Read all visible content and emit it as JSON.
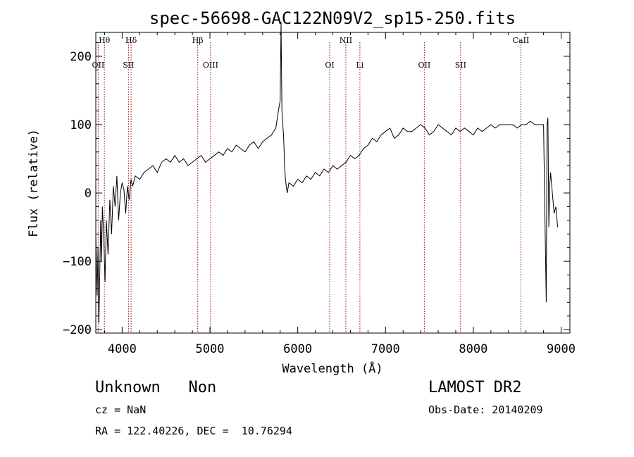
{
  "chart_data": {
    "type": "line",
    "title": "spec-56698-GAC122N09V2_sp15-250.fits",
    "xlabel": "Wavelength (Å)",
    "ylabel": "Flux (relative)",
    "xlim": [
      3700,
      9100
    ],
    "ylim": [
      -205,
      235
    ],
    "x_ticks": [
      "4000",
      "5000",
      "6000",
      "7000",
      "8000",
      "9000"
    ],
    "y_ticks": [
      "-200",
      "-100",
      "0",
      "100",
      "200"
    ],
    "grid": false,
    "series": [
      {
        "x": [
          3700,
          3715,
          3725,
          3735,
          3745,
          3755,
          3765,
          3775,
          3790,
          3805,
          3820,
          3840,
          3860,
          3880,
          3900,
          3920,
          3940,
          3960,
          3980,
          4000,
          4020,
          4040,
          4060,
          4080,
          4100,
          4120,
          4150,
          4200,
          4250,
          4300,
          4350,
          4400,
          4450,
          4500,
          4550,
          4600,
          4650,
          4700,
          4750,
          4800,
          4850,
          4900,
          4950,
          5000,
          5050,
          5100,
          5150,
          5200,
          5250,
          5300,
          5350,
          5400,
          5450,
          5500,
          5550,
          5600,
          5650,
          5700,
          5750,
          5780,
          5800,
          5810,
          5820,
          5830,
          5840,
          5850,
          5860,
          5870,
          5880,
          5900,
          5950,
          6000,
          6050,
          6100,
          6150,
          6200,
          6250,
          6300,
          6350,
          6400,
          6450,
          6500,
          6550,
          6600,
          6650,
          6700,
          6750,
          6800,
          6850,
          6900,
          6950,
          7000,
          7050,
          7100,
          7150,
          7200,
          7250,
          7300,
          7350,
          7400,
          7450,
          7500,
          7550,
          7600,
          7650,
          7700,
          7750,
          7800,
          7850,
          7900,
          7950,
          8000,
          8050,
          8100,
          8150,
          8200,
          8250,
          8300,
          8350,
          8400,
          8450,
          8500,
          8550,
          8600,
          8650,
          8700,
          8750,
          8800,
          8830,
          8840,
          8850,
          8860,
          8870,
          8880,
          8900,
          8920,
          8940,
          8960
        ],
        "values": [
          -60,
          -150,
          -80,
          -190,
          -120,
          -40,
          -100,
          -20,
          -60,
          -130,
          -40,
          -90,
          -10,
          -60,
          10,
          -20,
          25,
          -40,
          0,
          15,
          5,
          -30,
          10,
          -10,
          20,
          10,
          25,
          20,
          30,
          35,
          40,
          30,
          45,
          50,
          45,
          55,
          45,
          50,
          40,
          45,
          50,
          55,
          45,
          50,
          55,
          60,
          55,
          65,
          60,
          70,
          65,
          60,
          70,
          75,
          65,
          75,
          80,
          85,
          95,
          120,
          135,
          250,
          120,
          100,
          80,
          40,
          20,
          10,
          0,
          15,
          10,
          20,
          15,
          25,
          20,
          30,
          25,
          35,
          30,
          40,
          35,
          40,
          45,
          55,
          50,
          55,
          65,
          70,
          80,
          75,
          85,
          90,
          95,
          80,
          85,
          95,
          90,
          90,
          95,
          100,
          95,
          85,
          90,
          100,
          95,
          90,
          85,
          95,
          90,
          95,
          90,
          85,
          95,
          90,
          95,
          100,
          95,
          100,
          100,
          100,
          100,
          95,
          100,
          100,
          105,
          100,
          100,
          100,
          -160,
          100,
          110,
          -50,
          10,
          30,
          0,
          -30,
          -20,
          -50
        ]
      }
    ],
    "lines": [
      {
        "name": "Hθ",
        "x": 3798,
        "row": 1
      },
      {
        "name": "OII",
        "x": 3727,
        "row": 2
      },
      {
        "name": "Hδ",
        "x": 4102,
        "row": 1
      },
      {
        "name": "SII",
        "x": 4072,
        "row": 2
      },
      {
        "name": "Hβ",
        "x": 4861,
        "row": 1
      },
      {
        "name": "OIII",
        "x": 5007,
        "row": 2
      },
      {
        "name": "OI",
        "x": 6364,
        "row": 2
      },
      {
        "name": "NII",
        "x": 6548,
        "row": 1
      },
      {
        "name": "Li",
        "x": 6708,
        "row": 2
      },
      {
        "name": "OII",
        "x": 7442,
        "row": 2
      },
      {
        "name": "SII",
        "x": 7855,
        "row": 2
      },
      {
        "name": "CaII",
        "x": 8542,
        "row": 1
      }
    ],
    "line_color": "#000000",
    "marker_color": "#a01010"
  },
  "info": {
    "class_line": "Unknown   Non",
    "cz_line": "cz = NaN",
    "radec_line": "RA = 122.40226, DEC =  10.76294",
    "survey": "LAMOST DR2",
    "obs_date": "Obs-Date: 20140209"
  }
}
